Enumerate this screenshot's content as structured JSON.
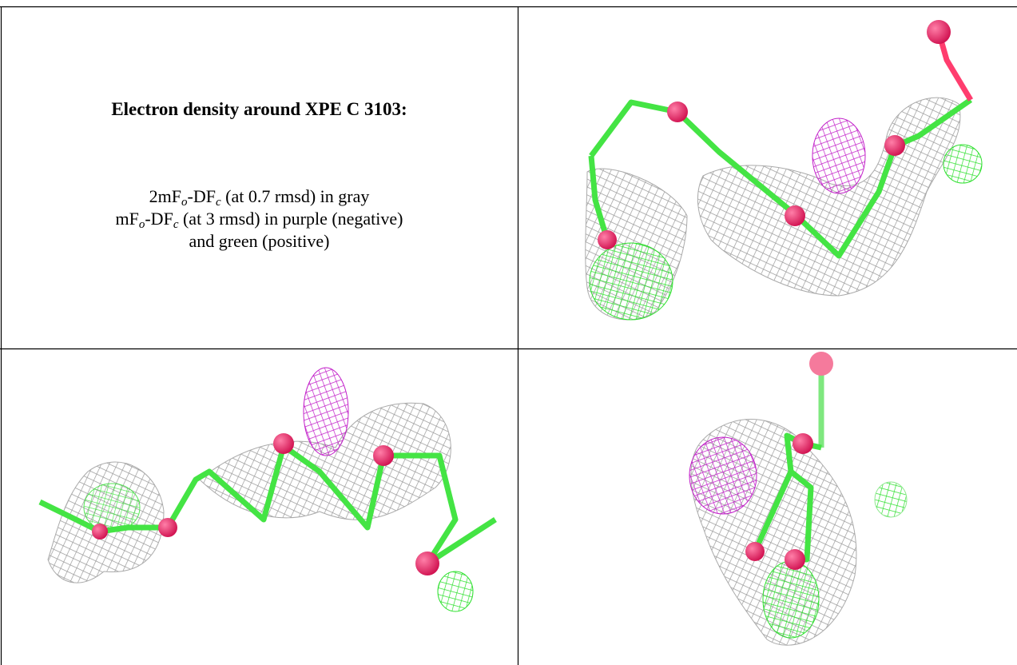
{
  "caption": {
    "title": "Electron density around XPE C 3103:",
    "lines": [
      [
        "2mF",
        "o",
        "-DF",
        "c",
        " (at 0.7 rmsd) in gray"
      ],
      [
        "mF",
        "o",
        "-DF",
        "c",
        " (at 3 rmsd) in purple (negative)"
      ],
      [
        "and green (positive)"
      ]
    ]
  }
}
